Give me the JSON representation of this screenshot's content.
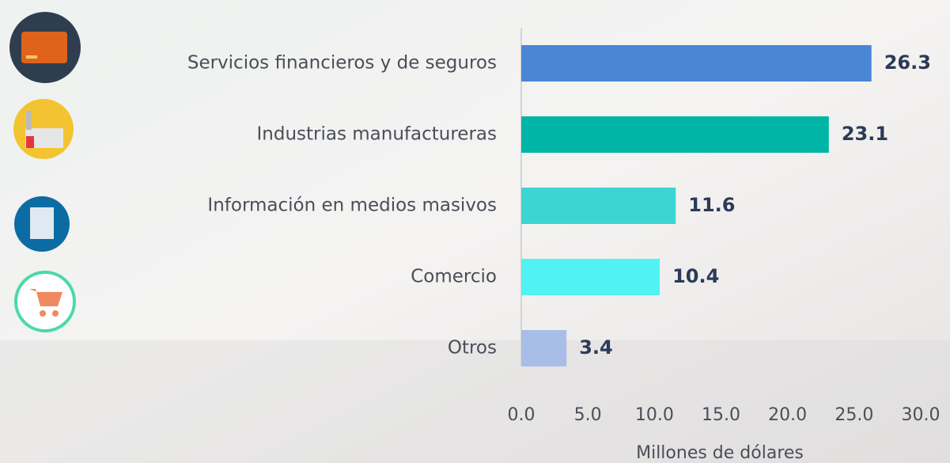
{
  "chart_data": {
    "type": "barh",
    "categories": [
      "Servicios financieros y de seguros",
      "Industrias manufactureras",
      "Información en medios masivos",
      "Comercio",
      "Otros"
    ],
    "values": [
      26.3,
      23.1,
      11.6,
      10.4,
      3.4
    ],
    "colors": [
      "#4a86d4",
      "#00b5a5",
      "#3cd6d2",
      "#50f2f2",
      "#a9bee6"
    ],
    "xlabel": "Millones de dólares",
    "xlim": [
      0,
      30
    ],
    "xticks": [
      {
        "value": 0,
        "label": "0.0"
      },
      {
        "value": 5,
        "label": "5.0"
      },
      {
        "value": 10,
        "label": "10.0"
      },
      {
        "value": 15,
        "label": "15.0"
      },
      {
        "value": 20,
        "label": "20.0"
      },
      {
        "value": 25,
        "label": "25.0"
      },
      {
        "value": 30,
        "label": "30.0"
      }
    ]
  }
}
